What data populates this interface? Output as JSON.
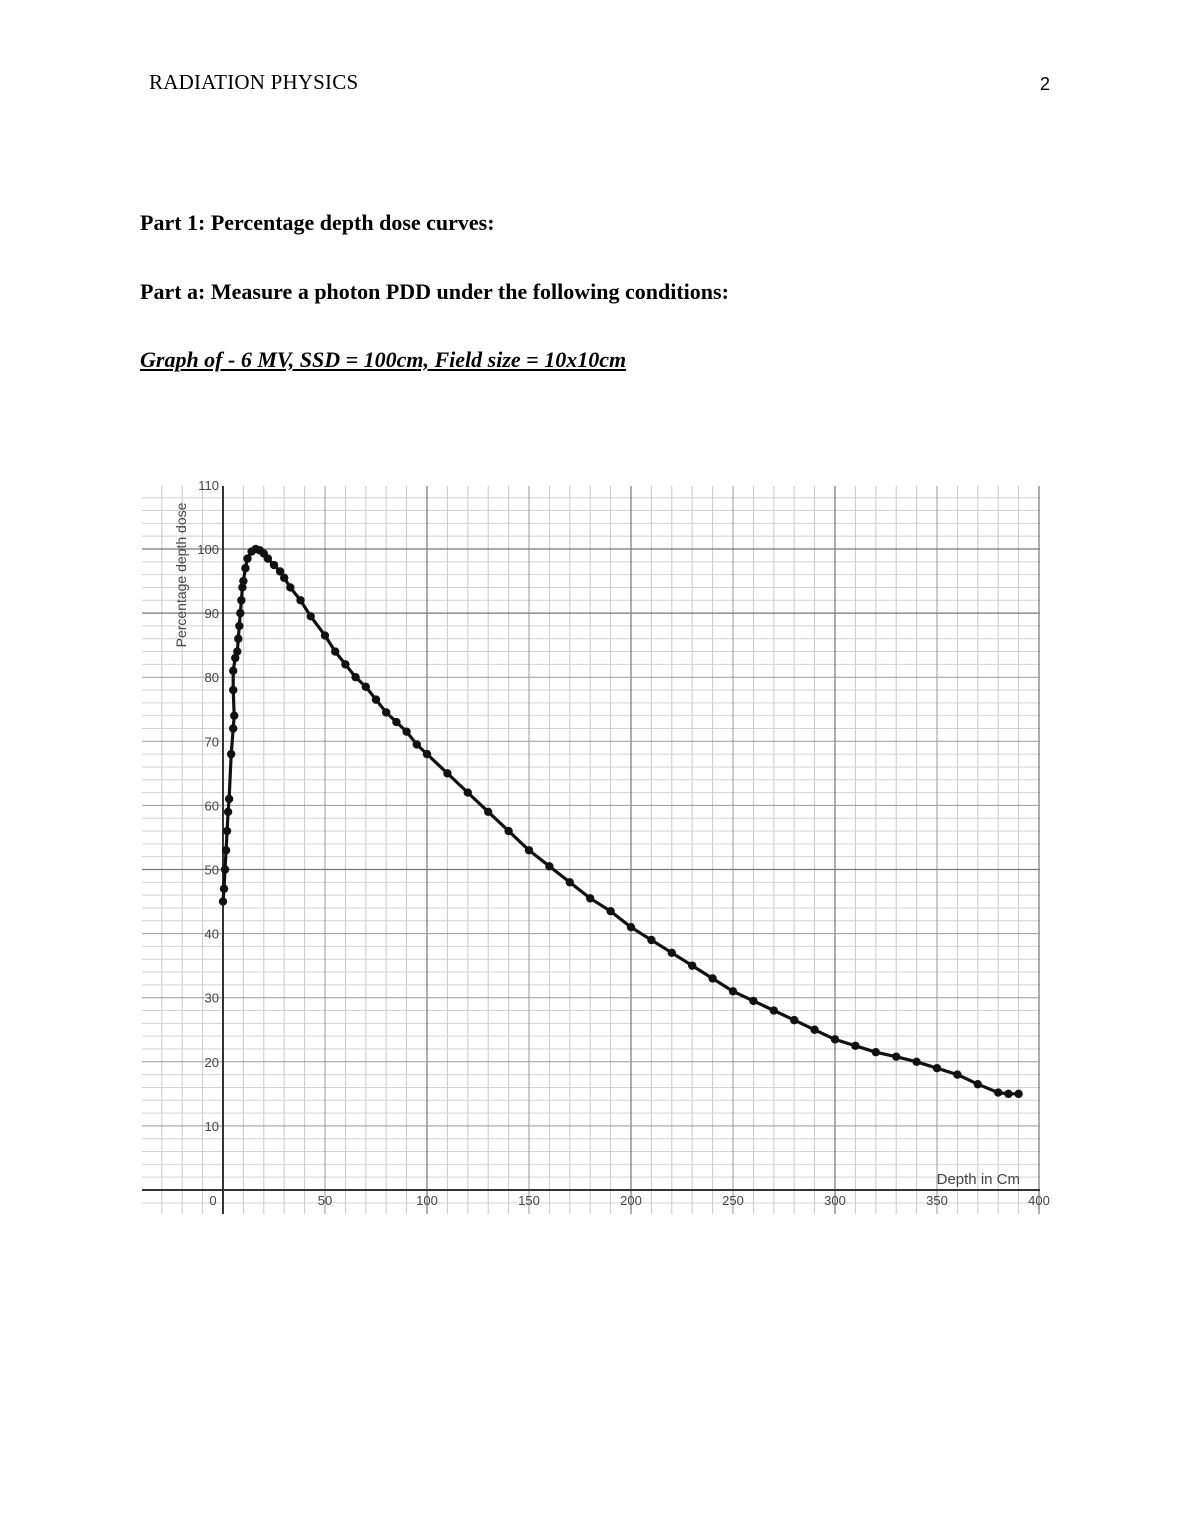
{
  "header": {
    "running_head": "RADIATION PHYSICS",
    "page_number": "2"
  },
  "headings": {
    "part1": "Part 1: Percentage depth dose curves:",
    "part_a": "Part a: Measure a photon PDD under the following conditions:",
    "graph_title": "Graph of - 6 MV, SSD = 100cm, Field size = 10x10cm"
  },
  "chart_data": {
    "type": "line",
    "title": "",
    "xlabel": "Depth in Cm",
    "ylabel": "Percentage depth dose",
    "xlim": [
      0,
      400
    ],
    "ylim": [
      0,
      110
    ],
    "x_ticks": [
      "0",
      "50",
      "100",
      "150",
      "200",
      "250",
      "300",
      "350",
      "400"
    ],
    "y_ticks": [
      "10",
      "20",
      "30",
      "40",
      "50",
      "60",
      "70",
      "80",
      "90",
      "100",
      "110"
    ],
    "grid": true,
    "markers": true,
    "series": [
      {
        "points": [
          [
            0,
            45
          ],
          [
            0.5,
            47
          ],
          [
            1,
            50
          ],
          [
            1.5,
            53
          ],
          [
            2,
            56
          ],
          [
            2.5,
            59
          ],
          [
            3,
            61
          ],
          [
            4,
            68
          ],
          [
            5,
            72
          ],
          [
            5.5,
            74
          ],
          [
            5,
            78
          ],
          [
            5,
            81
          ],
          [
            6,
            83
          ],
          [
            7,
            84
          ],
          [
            7.5,
            86
          ],
          [
            8,
            88
          ],
          [
            8.5,
            90
          ],
          [
            9,
            92
          ],
          [
            9.5,
            94
          ],
          [
            10,
            95
          ],
          [
            11,
            97
          ],
          [
            12,
            98.5
          ],
          [
            14,
            99.6
          ],
          [
            16,
            100
          ],
          [
            18,
            99.8
          ],
          [
            20,
            99.3
          ],
          [
            22,
            98.5
          ],
          [
            25,
            97.5
          ],
          [
            28,
            96.5
          ],
          [
            30,
            95.5
          ],
          [
            33,
            94
          ],
          [
            38,
            92
          ],
          [
            43,
            89.5
          ],
          [
            50,
            86.5
          ],
          [
            55,
            84
          ],
          [
            60,
            82
          ],
          [
            65,
            80
          ],
          [
            70,
            78.5
          ],
          [
            75,
            76.5
          ],
          [
            80,
            74.5
          ],
          [
            85,
            73
          ],
          [
            90,
            71.5
          ],
          [
            95,
            69.5
          ],
          [
            100,
            68
          ],
          [
            110,
            65
          ],
          [
            120,
            62
          ],
          [
            130,
            59
          ],
          [
            140,
            56
          ],
          [
            150,
            53
          ],
          [
            160,
            50.5
          ],
          [
            170,
            48
          ],
          [
            180,
            45.5
          ],
          [
            190,
            43.5
          ],
          [
            200,
            41
          ],
          [
            210,
            39
          ],
          [
            220,
            37
          ],
          [
            230,
            35
          ],
          [
            240,
            33
          ],
          [
            250,
            31
          ],
          [
            260,
            29.5
          ],
          [
            270,
            28
          ],
          [
            280,
            26.5
          ],
          [
            290,
            25
          ],
          [
            300,
            23.5
          ],
          [
            310,
            22.5
          ],
          [
            320,
            21.5
          ],
          [
            330,
            20.8
          ],
          [
            340,
            20
          ],
          [
            350,
            19
          ],
          [
            360,
            18
          ],
          [
            370,
            16.5
          ],
          [
            380,
            15.2
          ],
          [
            385,
            15
          ],
          [
            390,
            15
          ]
        ]
      }
    ]
  }
}
